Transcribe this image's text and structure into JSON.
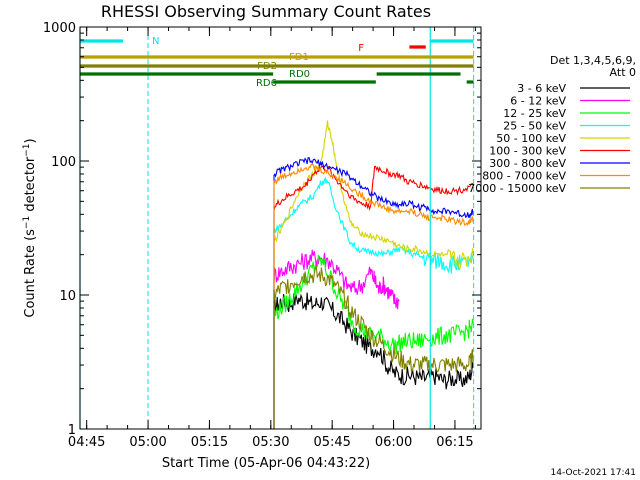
{
  "chart_data": {
    "type": "line",
    "title": "RHESSI Observing Summary Count Rates",
    "xlabel": "Start Time (05-Apr-06 04:43:22)",
    "ylabel_parts": [
      "Count Rate (s",
      "−1",
      " detector",
      "−1",
      ")"
    ],
    "yscale": "log",
    "ylim": [
      1,
      1000
    ],
    "xlim_minutes": [
      0,
      98
    ],
    "x_ticks": [
      {
        "t": 1.63,
        "label": "04:45"
      },
      {
        "t": 16.63,
        "label": "05:00"
      },
      {
        "t": 31.63,
        "label": "05:15"
      },
      {
        "t": 46.63,
        "label": "05:30"
      },
      {
        "t": 61.63,
        "label": "05:45"
      },
      {
        "t": 76.63,
        "label": "06:00"
      },
      {
        "t": 91.63,
        "label": "06:15"
      }
    ],
    "y_ticks": [
      {
        "v": 1,
        "label": "1"
      },
      {
        "v": 10,
        "label": "10"
      },
      {
        "v": 100,
        "label": "100"
      },
      {
        "v": 1000,
        "label": "1000"
      }
    ],
    "legend_title": [
      "Det 1,3,4,5,6,9,",
      "Att 0"
    ],
    "legend_placement": "right",
    "series": [
      {
        "name": "3 - 6 keV",
        "color": "#000000",
        "points": [
          [
            47.4,
            8
          ],
          [
            49,
            9
          ],
          [
            51,
            8.5
          ],
          [
            53,
            9.5
          ],
          [
            55,
            9
          ],
          [
            57,
            8.5
          ],
          [
            59,
            9
          ],
          [
            61,
            8
          ],
          [
            63,
            7
          ],
          [
            65,
            6
          ],
          [
            67,
            5
          ],
          [
            69,
            4.5
          ],
          [
            71,
            4
          ],
          [
            73,
            4
          ],
          [
            75,
            3
          ],
          [
            77,
            2.6
          ],
          [
            79,
            2.5
          ],
          [
            81,
            2.5
          ],
          [
            83,
            2.4
          ],
          [
            85,
            2.4
          ],
          [
            87,
            2.5
          ],
          [
            89,
            2.3
          ],
          [
            91,
            2.4
          ],
          [
            93,
            2.3
          ],
          [
            95,
            2.4
          ],
          [
            96.2,
            3
          ]
        ]
      },
      {
        "name": "6 - 12 keV",
        "color": "#ff00ff",
        "points": [
          [
            47.4,
            14
          ],
          [
            49,
            15
          ],
          [
            51,
            16
          ],
          [
            53,
            17
          ],
          [
            55,
            18
          ],
          [
            57,
            19
          ],
          [
            59,
            19
          ],
          [
            61,
            18
          ],
          [
            63,
            15
          ],
          [
            65,
            12
          ],
          [
            67,
            11
          ],
          [
            69,
            12
          ],
          [
            71,
            15
          ],
          [
            72,
            13
          ],
          [
            73,
            11
          ],
          [
            74,
            12
          ],
          [
            75,
            11
          ],
          [
            76,
            10
          ],
          [
            77,
            9
          ],
          [
            78,
            9
          ]
        ]
      },
      {
        "name": "12 - 25 keV",
        "color": "#00ff00",
        "points": [
          [
            47.4,
            7
          ],
          [
            49,
            8
          ],
          [
            51,
            9
          ],
          [
            53,
            11
          ],
          [
            55,
            13
          ],
          [
            57,
            16
          ],
          [
            59,
            18
          ],
          [
            61,
            14
          ],
          [
            63,
            10
          ],
          [
            65,
            8
          ],
          [
            67,
            6
          ],
          [
            69,
            5.5
          ],
          [
            71,
            5
          ],
          [
            73,
            5
          ],
          [
            75,
            4.5
          ],
          [
            77,
            4.2
          ],
          [
            79,
            4.5
          ],
          [
            81,
            4.5
          ],
          [
            83,
            4.5
          ],
          [
            85,
            4.8
          ],
          [
            87,
            4.8
          ],
          [
            89,
            5
          ],
          [
            91,
            5
          ],
          [
            93,
            5.2
          ],
          [
            95,
            5.5
          ],
          [
            96.2,
            6
          ]
        ]
      },
      {
        "name": "25 - 50 keV",
        "color": "#00ffff",
        "points": [
          [
            47.4,
            30
          ],
          [
            49,
            33
          ],
          [
            51,
            38
          ],
          [
            53,
            45
          ],
          [
            55,
            50
          ],
          [
            57,
            55
          ],
          [
            59,
            70
          ],
          [
            60.5,
            72
          ],
          [
            62,
            50
          ],
          [
            64,
            35
          ],
          [
            66,
            25
          ],
          [
            68,
            22
          ],
          [
            70,
            21
          ],
          [
            72,
            21
          ],
          [
            74,
            20
          ],
          [
            76,
            21
          ],
          [
            78,
            22
          ],
          [
            80,
            21
          ],
          [
            82,
            20
          ],
          [
            84,
            19
          ],
          [
            86,
            18
          ],
          [
            88,
            18
          ],
          [
            90,
            17
          ],
          [
            92,
            17
          ],
          [
            94,
            17
          ],
          [
            96.2,
            18
          ]
        ]
      },
      {
        "name": "50 - 100 keV",
        "color": "#d4d400",
        "points": [
          [
            47.4,
            25
          ],
          [
            49,
            30
          ],
          [
            51,
            40
          ],
          [
            53,
            55
          ],
          [
            55,
            70
          ],
          [
            57,
            80
          ],
          [
            59,
            100
          ],
          [
            60.5,
            190
          ],
          [
            61.5,
            150
          ],
          [
            62.5,
            100
          ],
          [
            64,
            60
          ],
          [
            66,
            35
          ],
          [
            68,
            30
          ],
          [
            70,
            28
          ],
          [
            72,
            27
          ],
          [
            74,
            26
          ],
          [
            76,
            25
          ],
          [
            78,
            23
          ],
          [
            80,
            22
          ],
          [
            82,
            22
          ],
          [
            84,
            21
          ],
          [
            86,
            20
          ],
          [
            88,
            20
          ],
          [
            90,
            19
          ],
          [
            92,
            18
          ],
          [
            94,
            18
          ],
          [
            96.2,
            20
          ]
        ]
      },
      {
        "name": "100 - 300 keV",
        "color": "#ff0000",
        "points": [
          [
            47.4,
            45
          ],
          [
            49,
            50
          ],
          [
            51,
            55
          ],
          [
            53,
            60
          ],
          [
            55,
            65
          ],
          [
            57,
            80
          ],
          [
            59,
            90
          ],
          [
            61,
            85
          ],
          [
            63,
            70
          ],
          [
            65,
            60
          ],
          [
            67,
            52
          ],
          [
            69,
            48
          ],
          [
            71,
            46
          ],
          [
            72,
            90
          ],
          [
            74,
            85
          ],
          [
            76,
            80
          ],
          [
            78,
            78
          ],
          [
            80,
            70
          ],
          [
            82,
            68
          ],
          [
            84,
            65
          ],
          [
            86,
            62
          ],
          [
            88,
            60
          ],
          [
            90,
            60
          ],
          [
            92,
            60
          ],
          [
            94,
            62
          ],
          [
            96.2,
            65
          ]
        ]
      },
      {
        "name": "300 - 800 keV",
        "color": "#0000ff",
        "points": [
          [
            47.4,
            80
          ],
          [
            49,
            85
          ],
          [
            51,
            90
          ],
          [
            53,
            95
          ],
          [
            55,
            100
          ],
          [
            57,
            100
          ],
          [
            59,
            95
          ],
          [
            61,
            90
          ],
          [
            63,
            85
          ],
          [
            65,
            80
          ],
          [
            67,
            72
          ],
          [
            69,
            65
          ],
          [
            71,
            58
          ],
          [
            73,
            52
          ],
          [
            75,
            50
          ],
          [
            77,
            47
          ],
          [
            79,
            48
          ],
          [
            81,
            48
          ],
          [
            83,
            45
          ],
          [
            85,
            45
          ],
          [
            87,
            42
          ],
          [
            89,
            42
          ],
          [
            91,
            42
          ],
          [
            93,
            40
          ],
          [
            95,
            40
          ],
          [
            96.2,
            42
          ]
        ]
      },
      {
        "name": "800 - 7000 keV",
        "color": "#ff8c00",
        "points": [
          [
            47.4,
            70
          ],
          [
            49,
            75
          ],
          [
            51,
            80
          ],
          [
            53,
            85
          ],
          [
            55,
            90
          ],
          [
            57,
            90
          ],
          [
            59,
            85
          ],
          [
            61,
            80
          ],
          [
            63,
            75
          ],
          [
            65,
            68
          ],
          [
            67,
            60
          ],
          [
            69,
            55
          ],
          [
            71,
            50
          ],
          [
            73,
            47
          ],
          [
            75,
            44
          ],
          [
            77,
            42
          ],
          [
            79,
            42
          ],
          [
            81,
            42
          ],
          [
            83,
            40
          ],
          [
            85,
            38
          ],
          [
            87,
            38
          ],
          [
            89,
            37
          ],
          [
            91,
            36
          ],
          [
            93,
            35
          ],
          [
            95,
            35
          ],
          [
            96.2,
            37
          ]
        ]
      },
      {
        "name": "7000 - 15000 keV",
        "color": "#808000",
        "points": [
          [
            47.4,
            10
          ],
          [
            49,
            11
          ],
          [
            51,
            12
          ],
          [
            53,
            13
          ],
          [
            55,
            14
          ],
          [
            57,
            14
          ],
          [
            59,
            14
          ],
          [
            61,
            13
          ],
          [
            63,
            11
          ],
          [
            65,
            9
          ],
          [
            67,
            7
          ],
          [
            69,
            6
          ],
          [
            71,
            5
          ],
          [
            73,
            4.5
          ],
          [
            75,
            4
          ],
          [
            77,
            3.5
          ],
          [
            79,
            3.2
          ],
          [
            81,
            3
          ],
          [
            83,
            3
          ],
          [
            85,
            3
          ],
          [
            87,
            3
          ],
          [
            89,
            3
          ],
          [
            91,
            3
          ],
          [
            93,
            3
          ],
          [
            95,
            3
          ],
          [
            96.2,
            3.5
          ]
        ]
      }
    ],
    "annotations": {
      "bars": [
        {
          "label": "N",
          "color": "#00e5e5",
          "rows": [
            [
              0,
              10.5
            ],
            [
              85.5,
              96.2
            ]
          ]
        },
        {
          "label": "F",
          "color": "#ff0000",
          "rows": [
            [
              80.5,
              84.5
            ]
          ]
        },
        {
          "label": "FD1",
          "color": "#b8a000",
          "rows": [
            [
              0,
              47.2
            ],
            [
              47.2,
              96.2
            ]
          ]
        },
        {
          "label": "FD2",
          "color": "#808000",
          "rows": [
            [
              0,
              96.2
            ]
          ]
        },
        {
          "label": "RD0",
          "color": "#007000",
          "rows": [
            [
              0,
              47.2
            ],
            [
              72.5,
              93
            ]
          ]
        },
        {
          "label": "RD6",
          "color": "#007000",
          "rows": [
            [
              47.2,
              72.3
            ],
            [
              94.5,
              96.2
            ]
          ]
        }
      ],
      "vlines_dashed": [
        {
          "t": 16.63,
          "color": "#00e5e5"
        },
        {
          "t": 96.2,
          "color": "#00e5e5"
        }
      ],
      "vlines_solid": [
        {
          "t": 0,
          "color": "#00e5e5"
        },
        {
          "t": 85.6,
          "color": "#00e5e5"
        }
      ]
    }
  },
  "footer": {
    "timestamp": "14-Oct-2021 17:41"
  }
}
